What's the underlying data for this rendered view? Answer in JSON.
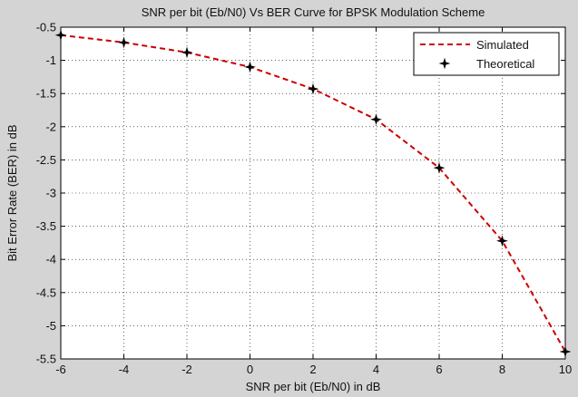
{
  "chart_data": {
    "type": "line",
    "title": "SNR per bit (Eb/N0) Vs BER Curve for BPSK Modulation Scheme",
    "xlabel": "SNR per bit (Eb/N0) in dB",
    "ylabel": "Bit Error Rate (BER) in dB",
    "xlim": [
      -6,
      10
    ],
    "ylim": [
      -5.5,
      -0.5
    ],
    "xticks": [
      "-6",
      "-4",
      "-2",
      "0",
      "2",
      "4",
      "6",
      "8",
      "10"
    ],
    "yticks": [
      "-0.5",
      "-1",
      "-1.5",
      "-2",
      "-2.5",
      "-3",
      "-3.5",
      "-4",
      "-4.5",
      "-5",
      "-5.5"
    ],
    "grid": true,
    "legend_position": "top-right",
    "x": [
      -6,
      -4,
      -2,
      0,
      2,
      4,
      6,
      8,
      10
    ],
    "series": [
      {
        "name": "Simulated",
        "style": "dashed",
        "color": "#cc0000",
        "values": [
          -0.62,
          -0.73,
          -0.88,
          -1.1,
          -1.43,
          -1.89,
          -2.62,
          -3.72,
          -5.39
        ]
      },
      {
        "name": "Theoretical",
        "style": "markers",
        "marker": "star",
        "color": "#000000",
        "values": [
          -0.62,
          -0.73,
          -0.88,
          -1.1,
          -1.43,
          -1.89,
          -2.62,
          -3.72,
          -5.39
        ]
      }
    ]
  }
}
